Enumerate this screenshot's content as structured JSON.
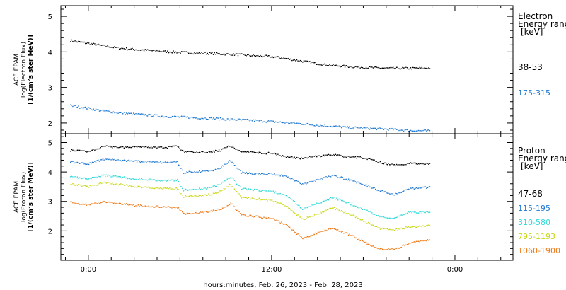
{
  "chart_data": [
    {
      "type": "scatter",
      "panel": "electron",
      "ylabel_lines": [
        "ACE EPAM",
        "log(Electron Flux)",
        "[1/(cm²s ster MeV)]"
      ],
      "yticks": [
        2,
        3,
        4,
        5
      ],
      "ylim": [
        1.7,
        5.3
      ],
      "legend_title": [
        "Electron",
        "Energy range",
        "[keV]"
      ],
      "series": [
        {
          "name": "38-53",
          "color": "#000000",
          "x": [
            -1.2,
            0,
            1,
            2,
            3,
            4,
            5,
            6,
            7,
            8,
            9,
            10,
            11,
            12,
            13,
            14,
            15,
            16,
            17,
            18,
            19,
            20,
            21,
            22.4
          ],
          "y": [
            4.33,
            4.25,
            4.18,
            4.12,
            4.08,
            4.05,
            4.02,
            4.0,
            3.98,
            3.97,
            3.95,
            3.93,
            3.9,
            3.88,
            3.82,
            3.75,
            3.68,
            3.63,
            3.6,
            3.58,
            3.56,
            3.55,
            3.55,
            3.56
          ]
        },
        {
          "name": "175-315",
          "color": "#1e78d2",
          "x": [
            -1.2,
            0,
            1,
            2,
            3,
            4,
            5,
            6,
            7,
            8,
            9,
            10,
            11,
            12,
            13,
            14,
            15,
            16,
            17,
            18,
            19,
            20,
            21,
            22.4
          ],
          "y": [
            2.5,
            2.42,
            2.35,
            2.3,
            2.26,
            2.23,
            2.2,
            2.18,
            2.16,
            2.14,
            2.12,
            2.1,
            2.08,
            2.05,
            2.02,
            1.99,
            1.95,
            1.92,
            1.89,
            1.87,
            1.85,
            1.83,
            1.8,
            1.79
          ]
        }
      ]
    },
    {
      "type": "scatter",
      "panel": "proton",
      "ylabel_lines": [
        "ACE EPAM",
        "log(Proton Flux)",
        "[1/(cm²s ster MeV)]"
      ],
      "yticks": [
        2,
        3,
        4,
        5
      ],
      "ylim": [
        1.0,
        5.3
      ],
      "legend_title": [
        "Proton",
        "Energy range",
        "[keV]"
      ],
      "series": [
        {
          "name": "47-68",
          "color": "#000000",
          "x": [
            -1.2,
            0,
            1,
            2,
            3,
            4,
            5,
            5.8,
            6.2,
            7,
            8,
            8.6,
            9.3,
            10,
            11,
            12,
            13,
            14,
            15,
            16,
            17,
            18,
            19,
            20,
            21,
            22.4
          ],
          "y": [
            4.75,
            4.72,
            4.88,
            4.85,
            4.88,
            4.87,
            4.83,
            4.9,
            4.7,
            4.68,
            4.7,
            4.75,
            4.9,
            4.7,
            4.67,
            4.65,
            4.52,
            4.48,
            4.55,
            4.6,
            4.52,
            4.5,
            4.35,
            4.25,
            4.3,
            4.3
          ]
        },
        {
          "name": "115-195",
          "color": "#1e78d2",
          "x": [
            -1.2,
            0,
            1,
            2,
            3,
            4,
            5,
            5.8,
            6.2,
            7,
            8,
            8.6,
            9.3,
            10,
            11,
            12,
            13,
            14,
            15,
            16,
            17,
            18,
            19,
            20,
            21,
            22.4
          ],
          "y": [
            4.35,
            4.3,
            4.45,
            4.42,
            4.38,
            4.36,
            4.34,
            4.35,
            4.0,
            4.02,
            4.05,
            4.15,
            4.4,
            4.0,
            3.95,
            3.95,
            3.85,
            3.6,
            3.75,
            3.9,
            3.75,
            3.6,
            3.4,
            3.25,
            3.45,
            3.5
          ]
        },
        {
          "name": "310-580",
          "color": "#2fd7d7",
          "x": [
            -1.2,
            0,
            1,
            2,
            3,
            4,
            5,
            5.8,
            6.2,
            7,
            8,
            8.6,
            9.3,
            10,
            11,
            12,
            13,
            14,
            15,
            16,
            17,
            18,
            19,
            20,
            21,
            22.4
          ],
          "y": [
            3.85,
            3.78,
            3.9,
            3.85,
            3.78,
            3.75,
            3.72,
            3.74,
            3.4,
            3.42,
            3.48,
            3.6,
            3.85,
            3.45,
            3.4,
            3.35,
            3.2,
            2.75,
            2.95,
            3.15,
            2.95,
            2.75,
            2.5,
            2.45,
            2.65,
            2.65
          ]
        },
        {
          "name": "795-1193",
          "color": "#c8d714",
          "x": [
            -1.2,
            0,
            1,
            2,
            3,
            4,
            5,
            5.8,
            6.2,
            7,
            8,
            8.6,
            9.3,
            10,
            11,
            12,
            13,
            14,
            15,
            16,
            17,
            18,
            19,
            20,
            21,
            22.4
          ],
          "y": [
            3.6,
            3.52,
            3.65,
            3.6,
            3.52,
            3.48,
            3.45,
            3.45,
            3.18,
            3.2,
            3.25,
            3.35,
            3.6,
            3.15,
            3.1,
            3.05,
            2.85,
            2.4,
            2.6,
            2.8,
            2.6,
            2.35,
            2.1,
            2.05,
            2.15,
            2.2
          ]
        },
        {
          "name": "1060-1900",
          "color": "#f07814",
          "x": [
            -1.2,
            0,
            1,
            2,
            3,
            4,
            5,
            5.8,
            6.2,
            7,
            8,
            8.6,
            9.3,
            10,
            11,
            12,
            13,
            14,
            15,
            16,
            17,
            18,
            19,
            20,
            21,
            22.4
          ],
          "y": [
            2.98,
            2.9,
            3.0,
            2.95,
            2.88,
            2.85,
            2.82,
            2.82,
            2.6,
            2.62,
            2.68,
            2.75,
            2.95,
            2.55,
            2.5,
            2.42,
            2.2,
            1.75,
            1.95,
            2.1,
            1.9,
            1.65,
            1.4,
            1.38,
            1.6,
            1.72
          ]
        }
      ]
    }
  ],
  "x_axis": {
    "xlim": [
      -1.8,
      27.8
    ],
    "ticks": [
      {
        "hour": 0,
        "label": "0:00"
      },
      {
        "hour": 12,
        "label": "12:00"
      },
      {
        "hour": 24,
        "label": "0:00"
      }
    ],
    "minor_tick_step_hours": 1.5,
    "title": "hours:minutes, Feb. 26, 2023 - Feb. 28, 2023"
  },
  "colors": {
    "background": "#ffffff",
    "frame": "#000000"
  }
}
